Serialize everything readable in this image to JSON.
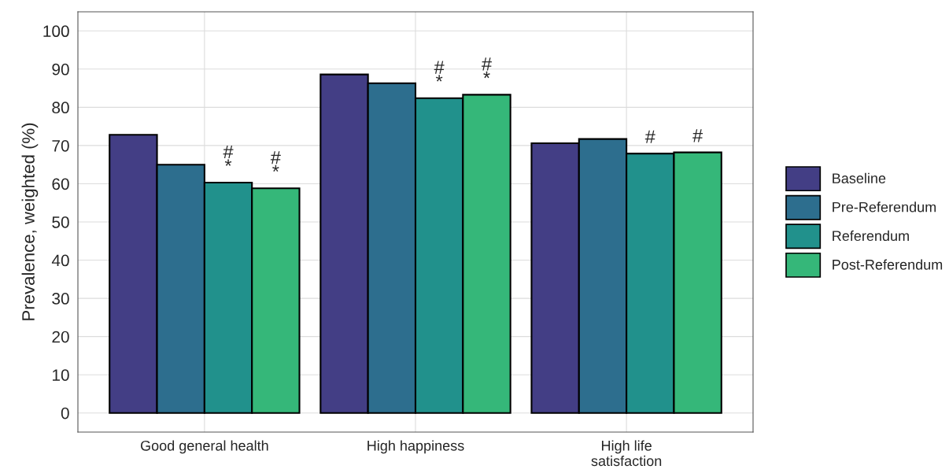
{
  "chart_data": {
    "type": "bar",
    "ylabel": "Prevalence, weighted (%)",
    "categories": [
      "Good general health",
      "High happiness",
      "High life\nsatisfaction"
    ],
    "series": [
      {
        "name": "Baseline",
        "color": "#433e85",
        "values": [
          72.8,
          88.6,
          70.6
        ]
      },
      {
        "name": "Pre-Referendum",
        "color": "#2d6e8e",
        "values": [
          65.0,
          86.3,
          71.7
        ]
      },
      {
        "name": "Referendum",
        "color": "#21918c",
        "values": [
          60.3,
          82.4,
          67.9
        ]
      },
      {
        "name": "Post-Referendum",
        "color": "#35b779",
        "values": [
          58.8,
          83.3,
          68.2
        ]
      }
    ],
    "annotations": [
      {
        "text": "#\n*",
        "y": 60.3
      },
      {
        "text": "#\n*",
        "y": 58.8
      },
      {
        "text": "#\n*",
        "y": 82.4
      },
      {
        "text": "#\n*",
        "y": 83.3
      },
      {
        "text": "#",
        "y": 67.9
      },
      {
        "text": "#",
        "y": 68.2
      }
    ],
    "ylim": [
      -5,
      105
    ],
    "yticks": [
      0,
      10,
      20,
      30,
      40,
      50,
      60,
      70,
      80,
      90,
      100
    ],
    "grid": true,
    "legend": "right"
  }
}
